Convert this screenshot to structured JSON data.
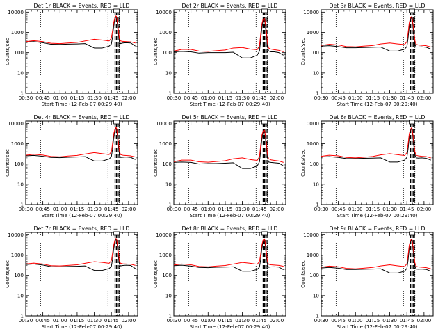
{
  "figure": {
    "background": "#ffffff"
  },
  "chart_data": {
    "type": "line",
    "x_label": "Start Time (12-Feb-07 00:29:40)",
    "y_label": "Counts/sec",
    "x_ticks": [
      "00:30",
      "00:45",
      "01:00",
      "01:15",
      "01:30",
      "01:45",
      "02:00"
    ],
    "x_tick_minutes": [
      30,
      45,
      60,
      75,
      90,
      105,
      120
    ],
    "xlim_minutes": [
      30,
      128
    ],
    "y_scale": "log",
    "y_ticks": [
      "1",
      "10",
      "100",
      "1000",
      "10000"
    ],
    "y_tick_values": [
      1,
      10,
      100,
      1000,
      10000
    ],
    "ylim": [
      1,
      13000
    ],
    "series_colors": {
      "events": "#000000",
      "lld": "#ff0000"
    },
    "vertical_markers": {
      "dotted_minutes": [
        43,
        102,
        112
      ],
      "dashed_minutes": [
        108.2,
        109.4,
        110.5,
        111.6
      ],
      "box_minute": 109.5
    },
    "panels": [
      {
        "title": "Det 1r BLACK = Events, RED = LLD",
        "x": [
          30,
          37,
          45,
          52,
          60,
          67,
          75,
          82,
          90,
          97,
          103,
          105,
          106,
          107,
          108,
          109,
          109.5,
          110,
          111,
          112,
          113,
          115,
          118,
          122,
          126
        ],
        "events": [
          330,
          350,
          310,
          260,
          255,
          265,
          270,
          280,
          170,
          170,
          210,
          270,
          600,
          2000,
          4600,
          6000,
          5500,
          3200,
          900,
          350,
          280,
          300,
          310,
          300,
          210
        ],
        "lld": [
          350,
          390,
          350,
          290,
          280,
          300,
          320,
          380,
          460,
          420,
          380,
          520,
          1200,
          3000,
          5200,
          6500,
          6000,
          4000,
          1500,
          500,
          380,
          360,
          350,
          340,
          300
        ]
      },
      {
        "title": "Det 2r BLACK = Events, RED = LLD",
        "x": [
          30,
          37,
          45,
          52,
          60,
          67,
          75,
          82,
          90,
          97,
          103,
          105,
          106,
          107,
          108,
          109,
          109.5,
          110,
          111,
          112,
          113,
          115,
          118,
          122,
          126
        ],
        "events": [
          110,
          115,
          110,
          95,
          100,
          100,
          100,
          105,
          55,
          55,
          75,
          120,
          400,
          1500,
          3500,
          4500,
          4200,
          2500,
          700,
          200,
          120,
          110,
          110,
          100,
          75
        ],
        "lld": [
          120,
          145,
          145,
          120,
          115,
          125,
          135,
          170,
          180,
          150,
          140,
          220,
          800,
          2500,
          4200,
          5000,
          4700,
          3000,
          1200,
          300,
          170,
          150,
          140,
          130,
          110
        ]
      },
      {
        "title": "Det 3r BLACK = Events, RED = LLD",
        "x": [
          30,
          37,
          45,
          52,
          60,
          67,
          75,
          82,
          90,
          97,
          103,
          105,
          106,
          107,
          108,
          109,
          109.5,
          110,
          111,
          112,
          113,
          115,
          118,
          122,
          126
        ],
        "events": [
          210,
          220,
          200,
          175,
          175,
          180,
          185,
          190,
          120,
          120,
          150,
          200,
          500,
          1800,
          4200,
          5500,
          5000,
          2900,
          800,
          280,
          190,
          190,
          195,
          185,
          150
        ],
        "lld": [
          230,
          260,
          240,
          200,
          195,
          210,
          225,
          270,
          300,
          270,
          250,
          350,
          900,
          2800,
          5000,
          6000,
          5600,
          3600,
          1300,
          400,
          260,
          240,
          230,
          220,
          190
        ]
      },
      {
        "title": "Det 4r BLACK = Events, RED = LLD",
        "x": [
          30,
          37,
          45,
          52,
          60,
          67,
          75,
          82,
          90,
          97,
          103,
          105,
          106,
          107,
          108,
          109,
          109.5,
          110,
          111,
          112,
          113,
          115,
          118,
          122,
          126
        ],
        "events": [
          250,
          265,
          240,
          210,
          205,
          215,
          220,
          230,
          140,
          140,
          175,
          230,
          550,
          1900,
          4400,
          5800,
          5300,
          3000,
          850,
          300,
          210,
          215,
          220,
          210,
          165
        ],
        "lld": [
          270,
          300,
          275,
          235,
          225,
          245,
          265,
          310,
          360,
          320,
          290,
          400,
          1000,
          3000,
          5100,
          6300,
          5900,
          3800,
          1400,
          430,
          290,
          270,
          260,
          250,
          220
        ]
      },
      {
        "title": "Det 5r BLACK = Events, RED = LLD",
        "x": [
          30,
          37,
          45,
          52,
          60,
          67,
          75,
          82,
          90,
          97,
          103,
          105,
          106,
          107,
          108,
          109,
          109.5,
          110,
          111,
          112,
          113,
          115,
          118,
          122,
          126
        ],
        "events": [
          120,
          125,
          120,
          100,
          105,
          105,
          110,
          115,
          60,
          60,
          80,
          130,
          420,
          1500,
          3300,
          4300,
          4000,
          2400,
          680,
          200,
          125,
          120,
          115,
          110,
          80
        ],
        "lld": [
          130,
          155,
          155,
          128,
          122,
          132,
          145,
          180,
          200,
          165,
          150,
          230,
          820,
          2500,
          4000,
          4800,
          4500,
          2900,
          1150,
          300,
          180,
          160,
          150,
          140,
          120
        ]
      },
      {
        "title": "Det 6r BLACK = Events, RED = LLD",
        "x": [
          30,
          37,
          45,
          52,
          60,
          67,
          75,
          82,
          90,
          97,
          103,
          105,
          106,
          107,
          108,
          109,
          109.5,
          110,
          111,
          112,
          113,
          115,
          118,
          122,
          126
        ],
        "events": [
          220,
          230,
          210,
          185,
          185,
          190,
          195,
          200,
          125,
          125,
          155,
          210,
          520,
          1850,
          4300,
          5600,
          5100,
          2950,
          820,
          290,
          200,
          195,
          200,
          190,
          155
        ],
        "lld": [
          240,
          270,
          250,
          210,
          200,
          215,
          235,
          280,
          320,
          285,
          260,
          360,
          920,
          2850,
          5000,
          6100,
          5700,
          3650,
          1300,
          410,
          270,
          250,
          240,
          230,
          200
        ]
      },
      {
        "title": "Det 7r BLACK = Events, RED = LLD",
        "x": [
          30,
          37,
          45,
          52,
          60,
          67,
          75,
          82,
          90,
          97,
          103,
          105,
          106,
          107,
          108,
          109,
          109.5,
          110,
          111,
          112,
          113,
          115,
          118,
          122,
          126
        ],
        "events": [
          340,
          360,
          320,
          270,
          265,
          275,
          280,
          290,
          175,
          175,
          215,
          280,
          620,
          2050,
          4700,
          6100,
          5600,
          3250,
          920,
          360,
          290,
          305,
          315,
          305,
          215
        ],
        "lld": [
          360,
          400,
          360,
          300,
          290,
          310,
          330,
          390,
          470,
          430,
          390,
          530,
          1220,
          3050,
          5300,
          6600,
          6100,
          4050,
          1520,
          510,
          390,
          370,
          360,
          350,
          310
        ]
      },
      {
        "title": "Det 8r BLACK = Events, RED = LLD",
        "x": [
          30,
          37,
          45,
          52,
          60,
          67,
          75,
          82,
          90,
          97,
          103,
          105,
          106,
          107,
          108,
          109,
          109.5,
          110,
          111,
          112,
          113,
          115,
          118,
          122,
          126
        ],
        "events": [
          300,
          315,
          285,
          245,
          240,
          250,
          255,
          265,
          160,
          160,
          195,
          255,
          580,
          1950,
          4500,
          5900,
          5400,
          3100,
          870,
          330,
          250,
          260,
          265,
          255,
          190
        ],
        "lld": [
          320,
          360,
          330,
          275,
          265,
          285,
          305,
          360,
          430,
          390,
          350,
          480,
          1120,
          2950,
          5150,
          6400,
          5950,
          3900,
          1450,
          470,
          350,
          330,
          320,
          310,
          280
        ]
      },
      {
        "title": "Det 9r BLACK = Events, RED = LLD",
        "x": [
          30,
          37,
          45,
          52,
          60,
          67,
          75,
          82,
          90,
          97,
          103,
          105,
          106,
          107,
          108,
          109,
          109.5,
          110,
          111,
          112,
          113,
          115,
          118,
          122,
          126
        ],
        "events": [
          230,
          245,
          225,
          195,
          195,
          200,
          205,
          210,
          130,
          130,
          160,
          220,
          530,
          1880,
          4350,
          5650,
          5150,
          2980,
          830,
          295,
          205,
          200,
          205,
          195,
          160
        ],
        "lld": [
          250,
          285,
          265,
          220,
          210,
          225,
          245,
          290,
          330,
          295,
          270,
          370,
          940,
          2880,
          5050,
          6150,
          5750,
          3700,
          1320,
          420,
          280,
          260,
          250,
          240,
          210
        ]
      }
    ]
  }
}
